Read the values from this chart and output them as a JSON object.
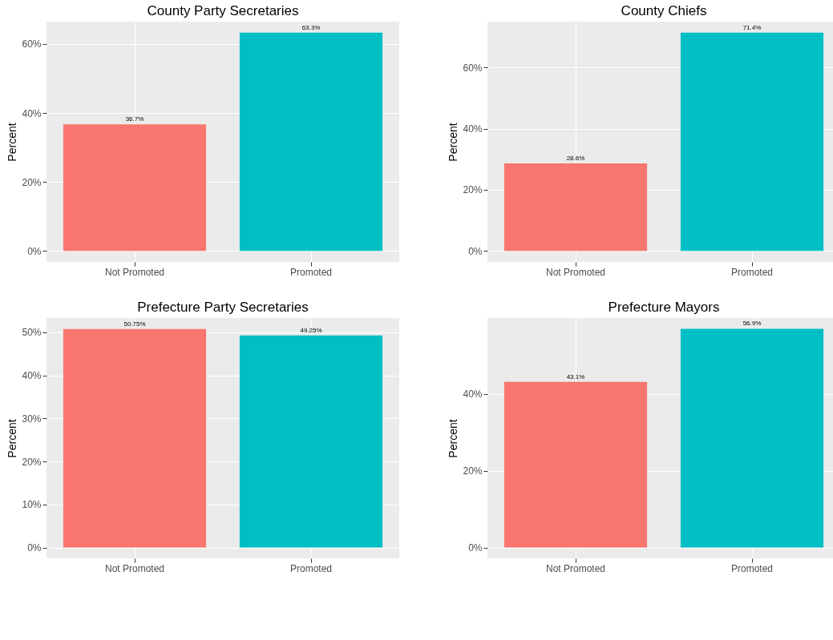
{
  "chart_data": [
    {
      "type": "bar",
      "title": "County Party Secretaries",
      "ylabel": "Percent",
      "categories": [
        "Not Promoted",
        "Promoted"
      ],
      "values": [
        36.7,
        63.3
      ],
      "colors": [
        "#f8766d",
        "#00bfc4"
      ],
      "value_labels": [
        "36.7%",
        "63.3%"
      ],
      "ylim": [
        -3.2,
        66.5
      ],
      "yticks": [
        {
          "value": 0,
          "label": "0%"
        },
        {
          "value": 20,
          "label": "20%"
        },
        {
          "value": 40,
          "label": "40%"
        },
        {
          "value": 60,
          "label": "60%"
        }
      ],
      "grid": true,
      "legend": false
    },
    {
      "type": "bar",
      "title": "County Chiefs",
      "ylabel": "Percent",
      "categories": [
        "Not Promoted",
        "Promoted"
      ],
      "values": [
        28.6,
        71.4
      ],
      "colors": [
        "#f8766d",
        "#00bfc4"
      ],
      "value_labels": [
        "28.6%",
        "71.4%"
      ],
      "ylim": [
        -3.6,
        75
      ],
      "yticks": [
        {
          "value": 0,
          "label": "0%"
        },
        {
          "value": 20,
          "label": "20%"
        },
        {
          "value": 40,
          "label": "40%"
        },
        {
          "value": 60,
          "label": "60%"
        }
      ],
      "grid": true,
      "legend": false
    },
    {
      "type": "bar",
      "title": "Prefecture Party Secretaries",
      "ylabel": "Percent",
      "categories": [
        "Not Promoted",
        "Promoted"
      ],
      "values": [
        50.75,
        49.25
      ],
      "colors": [
        "#f8766d",
        "#00bfc4"
      ],
      "value_labels": [
        "50.75%",
        "49.25%"
      ],
      "ylim": [
        -2.5,
        53.3
      ],
      "yticks": [
        {
          "value": 0,
          "label": "0%"
        },
        {
          "value": 10,
          "label": "10%"
        },
        {
          "value": 20,
          "label": "20%"
        },
        {
          "value": 30,
          "label": "30%"
        },
        {
          "value": 40,
          "label": "40%"
        },
        {
          "value": 50,
          "label": "50%"
        }
      ],
      "grid": true,
      "legend": false
    },
    {
      "type": "bar",
      "title": "Prefecture Mayors",
      "ylabel": "Percent",
      "categories": [
        "Not Promoted",
        "Promoted"
      ],
      "values": [
        43.1,
        56.9
      ],
      "colors": [
        "#f8766d",
        "#00bfc4"
      ],
      "value_labels": [
        "43.1%",
        "56.9%"
      ],
      "ylim": [
        -2.8,
        59.7
      ],
      "yticks": [
        {
          "value": 0,
          "label": "0%"
        },
        {
          "value": 20,
          "label": "20%"
        },
        {
          "value": 40,
          "label": "40%"
        }
      ],
      "grid": true,
      "legend": false
    }
  ]
}
